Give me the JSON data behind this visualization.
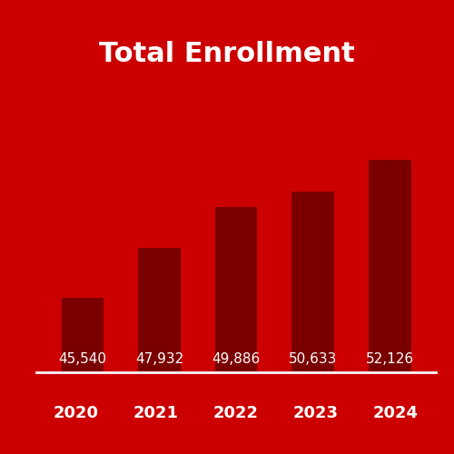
{
  "title": "Total Enrollment",
  "categories": [
    "2020",
    "2021",
    "2022",
    "2023",
    "2024"
  ],
  "values": [
    45540,
    47932,
    49886,
    50633,
    52126
  ],
  "value_labels": [
    "45,540",
    "47,932",
    "49,886",
    "50,633",
    "52,126"
  ],
  "background_color": "#CC0000",
  "bar_color": "#7A0000",
  "title_color": "#FFFFFF",
  "label_color": "#FFFFFF",
  "axis_label_color": "#FFFFFF",
  "title_fontsize": 22,
  "value_fontsize": 11,
  "axis_fontsize": 13,
  "ylim_min": 42000,
  "ylim_max": 55000,
  "bar_width": 0.55
}
